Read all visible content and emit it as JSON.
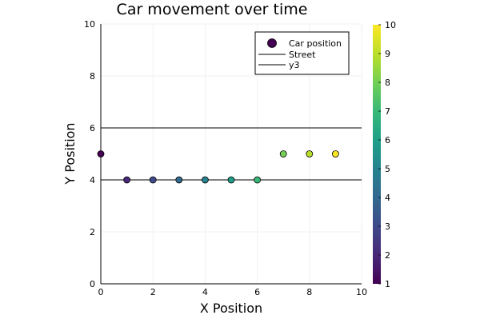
{
  "chart_data": {
    "type": "scatter",
    "title": "Car movement over time",
    "xlabel": "X Position",
    "ylabel": "Y Position",
    "xlim": [
      0,
      10
    ],
    "ylim": [
      0,
      10
    ],
    "x_ticks": [
      "0",
      "2",
      "4",
      "6",
      "8",
      "10"
    ],
    "y_ticks": [
      "0",
      "2",
      "4",
      "6",
      "8",
      "10"
    ],
    "grid": true,
    "legend_position": "top-right",
    "series": [
      {
        "name": "Car position",
        "kind": "scatter",
        "x": [
          0,
          1,
          2,
          3,
          4,
          5,
          6,
          7,
          8,
          9
        ],
        "y": [
          5,
          4,
          4,
          4,
          4,
          4,
          4,
          5,
          5,
          5
        ],
        "color_values": [
          1,
          2,
          3,
          4,
          5,
          6,
          7,
          8,
          9,
          10
        ]
      },
      {
        "name": "Street",
        "kind": "line",
        "x": [
          0,
          10
        ],
        "y": [
          4,
          4
        ],
        "color": "#000000"
      },
      {
        "name": "y3",
        "kind": "line",
        "x": [
          0,
          10
        ],
        "y": [
          6,
          6
        ],
        "color": "#000000"
      }
    ],
    "colorbar": {
      "colormap": "viridis",
      "range": [
        1,
        10
      ],
      "ticks": [
        "1",
        "2",
        "3",
        "4",
        "5",
        "6",
        "7",
        "8",
        "9",
        "10"
      ]
    }
  }
}
